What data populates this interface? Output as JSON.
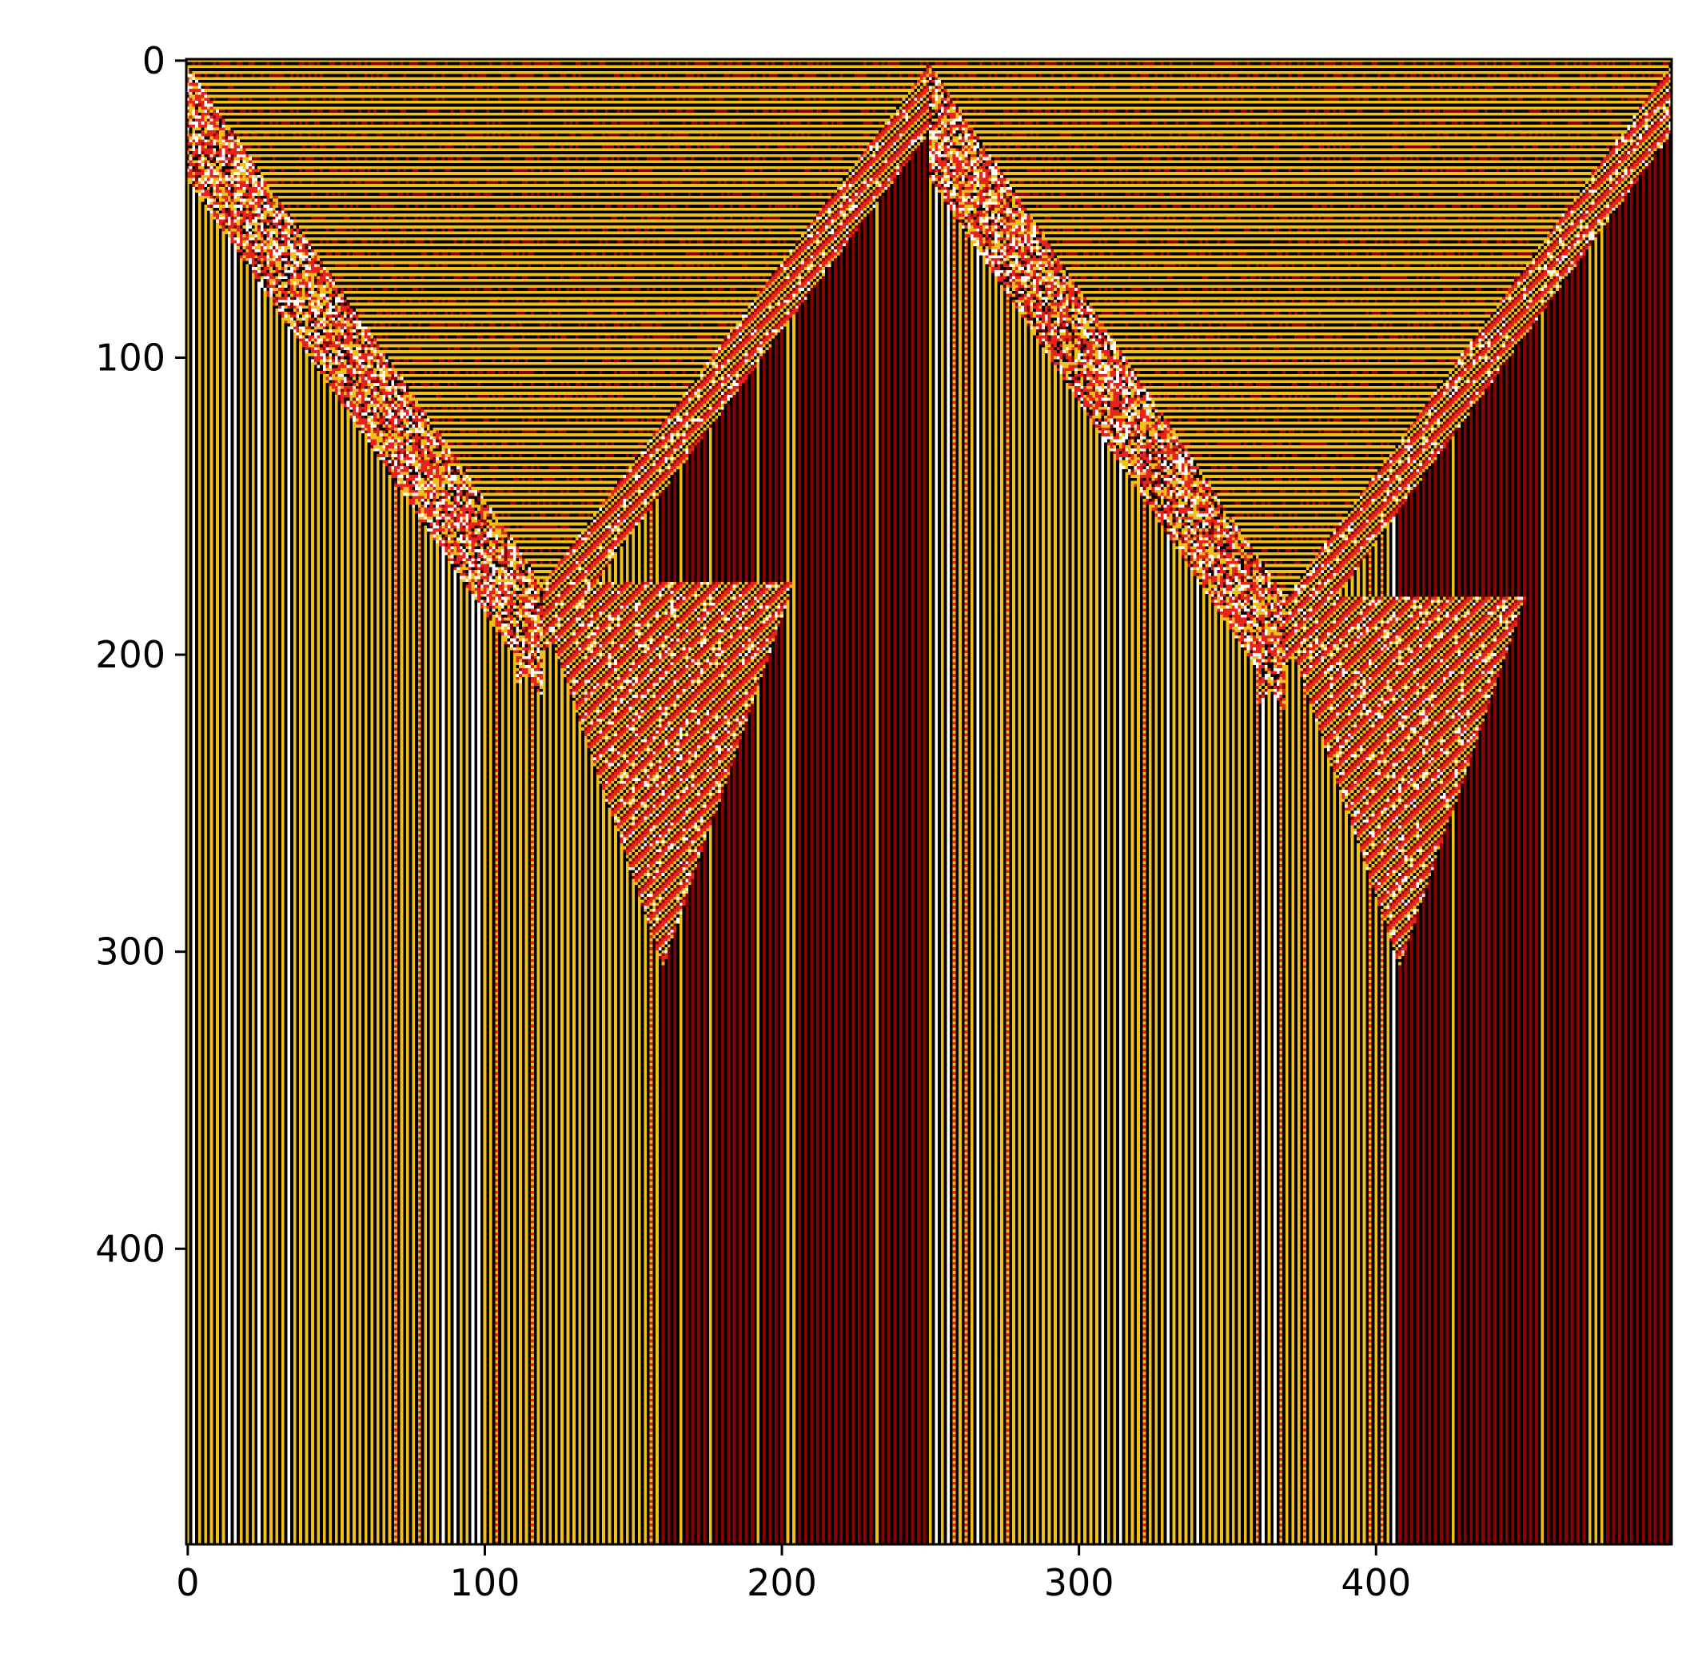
{
  "chart_data": {
    "type": "heatmap",
    "title": "",
    "xlabel": "",
    "ylabel": "",
    "grid": false,
    "legend": "none",
    "xlim": [
      0,
      499
    ],
    "ylim": [
      499,
      0
    ],
    "x_ticks": [
      0,
      100,
      200,
      300,
      400
    ],
    "y_ticks": [
      0,
      100,
      200,
      300,
      400
    ],
    "x_tick_labels": [
      "0",
      "100",
      "200",
      "300",
      "400"
    ],
    "y_tick_labels": [
      "0",
      "100",
      "200",
      "300",
      "400"
    ],
    "colormap": [
      "#000000",
      "#8b0000",
      "#e8231c",
      "#f0c019",
      "#ffffff"
    ],
    "colors": {
      "background_stripe_dark": "#000000",
      "background_stripe_light": "#f0c019",
      "stripe_red": "#8b0000",
      "chaos_red": "#e8231c",
      "white": "#ffffff"
    },
    "structure": {
      "seed_columns": [
        0,
        250
      ],
      "cone_apex_rows": [
        175,
        180
      ],
      "triangle_tip_rows": [
        305,
        305
      ],
      "triangle_tip_columns": [
        160,
        408
      ]
    }
  }
}
